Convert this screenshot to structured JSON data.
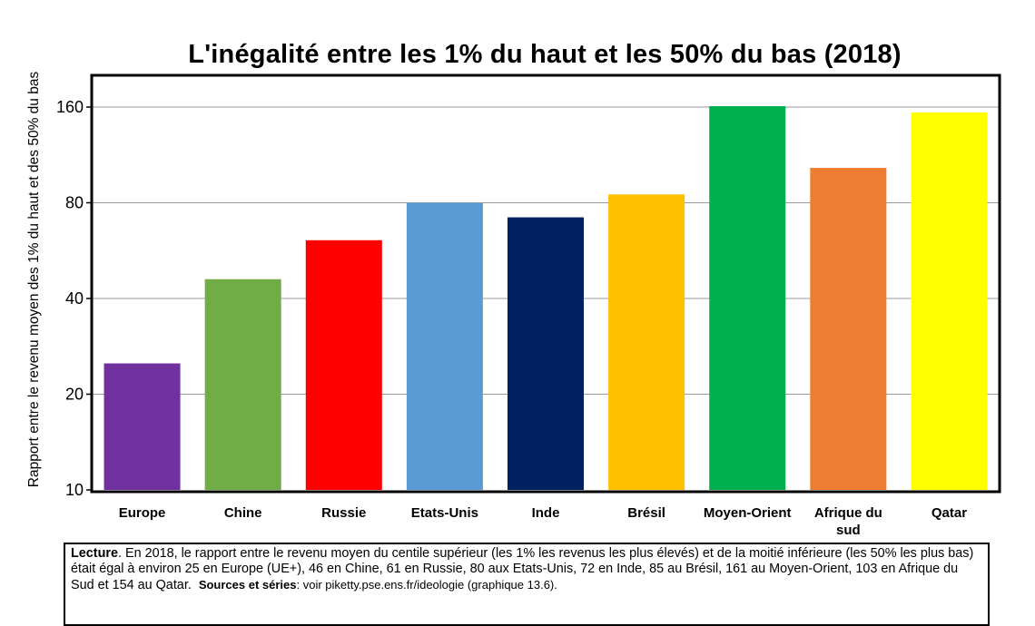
{
  "chart_data": {
    "type": "bar",
    "title": "L'inégalité entre les 1% du haut et les 50% du bas (2018)",
    "ylabel": "Rapport entre le revenu moyen des 1% du haut et des 50% du bas",
    "xlabel": "",
    "yscale": "log",
    "ylim": [
      10,
      200
    ],
    "yticks": [
      10,
      20,
      40,
      80,
      160
    ],
    "grid": true,
    "categories": [
      "Europe",
      "Chine",
      "Russie",
      "Etats-Unis",
      "Inde",
      "Brésil",
      "Moyen-Orient",
      "Afrique du sud",
      "Qatar"
    ],
    "values": [
      25,
      46,
      61,
      80,
      72,
      85,
      161,
      103,
      154
    ],
    "colors": [
      "#7030a0",
      "#70ad47",
      "#ff0000",
      "#5b9bd5",
      "#002060",
      "#ffc000",
      "#00b050",
      "#ed7d31",
      "#ffff00"
    ]
  },
  "note": {
    "lead": "Lecture",
    "text": ". En 2018, le rapport entre le revenu moyen du centile supérieur (les 1% les revenus les plus élevés) et de la moitié inférieure (les 50% les plus bas) était égal à environ 25 en Europe (UE+), 46 en Chine, 61 en Russie, 80 aux Etats-Unis, 72 en Inde, 85 au Brésil, 161 au Moyen-Orient, 103 en Afrique du Sud et 154 au Qatar.",
    "sources_label": "Sources et séries",
    "sources_text": ": voir piketty.pse.ens.fr/ideologie (graphique 13.6)."
  }
}
